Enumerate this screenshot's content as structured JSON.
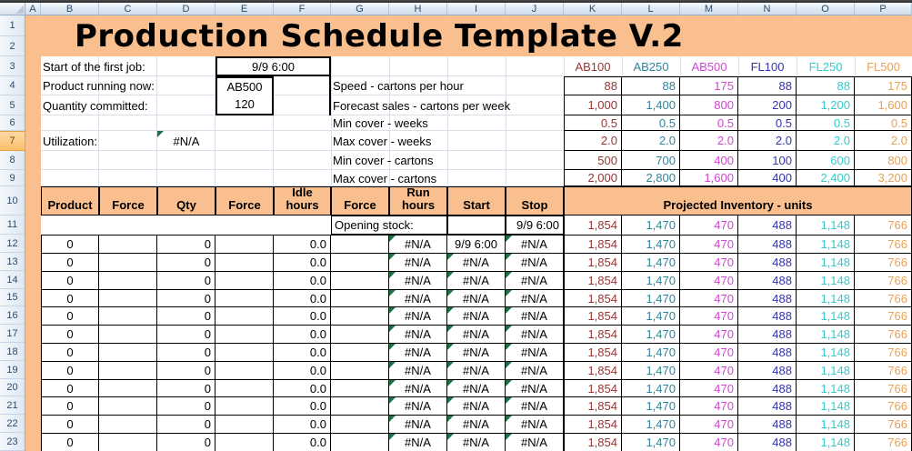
{
  "sheet": {
    "column_letters": [
      "A",
      "B",
      "C",
      "D",
      "E",
      "F",
      "G",
      "H",
      "I",
      "J",
      "K",
      "L",
      "M",
      "N",
      "O",
      "P"
    ],
    "row_numbers": [
      "1",
      "2",
      "3",
      "4",
      "5",
      "6",
      "7",
      "8",
      "9",
      "10",
      "11",
      "12",
      "13",
      "14",
      "15",
      "16",
      "17",
      "18",
      "19",
      "20",
      "21",
      "22",
      "23"
    ],
    "highlighted_row": "7"
  },
  "colors": {
    "band_orange": "#FABF8F",
    "grid_line": "#D9E0EA",
    "error_indicator_green": "#1E7145"
  },
  "title": "Production Schedule Template V.2",
  "info": {
    "start_label": "Start of the first job:",
    "start_value": "9/9 6:00",
    "running_label": "Product running now:",
    "running_value": "AB500",
    "qty_label": "Quantity committed:",
    "qty_value": "120",
    "util_label": "Utilization:",
    "util_value": "#N/A"
  },
  "params": {
    "speed_label": "Speed - cartons per hour",
    "forecast_label": "Forecast sales - cartons per week",
    "min_weeks_label": "Min cover - weeks",
    "max_weeks_label": "Max cover - weeks",
    "min_cartons_label": "Min cover - cartons",
    "max_cartons_label": "Max cover - cartons"
  },
  "products": [
    {
      "code": "AB100",
      "color": "#963634",
      "speed": "88",
      "forecast": "1,000",
      "min_weeks": "0.5",
      "max_weeks": "2.0",
      "min_cartons": "500",
      "max_cartons": "2,000",
      "opening": "1,854"
    },
    {
      "code": "AB250",
      "color": "#31859B",
      "speed": "88",
      "forecast": "1,400",
      "min_weeks": "0.5",
      "max_weeks": "2.0",
      "min_cartons": "700",
      "max_cartons": "2,800",
      "opening": "1,470"
    },
    {
      "code": "AB500",
      "color": "#D346D3",
      "speed": "175",
      "forecast": "800",
      "min_weeks": "0.5",
      "max_weeks": "2.0",
      "min_cartons": "400",
      "max_cartons": "1,600",
      "opening": "470"
    },
    {
      "code": "FL100",
      "color": "#3333B2",
      "speed": "88",
      "forecast": "200",
      "min_weeks": "0.5",
      "max_weeks": "2.0",
      "min_cartons": "100",
      "max_cartons": "400",
      "opening": "488"
    },
    {
      "code": "FL250",
      "color": "#33CCCC",
      "speed": "88",
      "forecast": "1,200",
      "min_weeks": "0.5",
      "max_weeks": "2.0",
      "min_cartons": "600",
      "max_cartons": "2,400",
      "opening": "1,148"
    },
    {
      "code": "FL500",
      "color": "#E8A157",
      "speed": "175",
      "forecast": "1,600",
      "min_weeks": "0.5",
      "max_weeks": "2.0",
      "min_cartons": "800",
      "max_cartons": "3,200",
      "opening": "766"
    }
  ],
  "schedule": {
    "headers": {
      "product": "Product",
      "force": "Force",
      "qty": "Qty",
      "idle": "Idle hours",
      "run": "Run hours",
      "start": "Start",
      "stop": "Stop",
      "inventory": "Projected Inventory - units"
    },
    "opening_label": "Opening stock:",
    "opening_stop_value": "9/9 6:00",
    "rows": [
      {
        "product": "0",
        "qty": "0",
        "idle": "0.0",
        "run": "#N/A",
        "start": "9/9 6:00",
        "stop": "#N/A",
        "tri_run": true,
        "tri_start": false,
        "tri_stop": true
      },
      {
        "product": "0",
        "qty": "0",
        "idle": "0.0",
        "run": "#N/A",
        "start": "#N/A",
        "stop": "#N/A",
        "tri_run": true,
        "tri_start": true,
        "tri_stop": true
      },
      {
        "product": "0",
        "qty": "0",
        "idle": "0.0",
        "run": "#N/A",
        "start": "#N/A",
        "stop": "#N/A",
        "tri_run": true,
        "tri_start": true,
        "tri_stop": true
      },
      {
        "product": "0",
        "qty": "0",
        "idle": "0.0",
        "run": "#N/A",
        "start": "#N/A",
        "stop": "#N/A",
        "tri_run": true,
        "tri_start": true,
        "tri_stop": true
      },
      {
        "product": "0",
        "qty": "0",
        "idle": "0.0",
        "run": "#N/A",
        "start": "#N/A",
        "stop": "#N/A",
        "tri_run": true,
        "tri_start": true,
        "tri_stop": true
      },
      {
        "product": "0",
        "qty": "0",
        "idle": "0.0",
        "run": "#N/A",
        "start": "#N/A",
        "stop": "#N/A",
        "tri_run": true,
        "tri_start": true,
        "tri_stop": true
      },
      {
        "product": "0",
        "qty": "0",
        "idle": "0.0",
        "run": "#N/A",
        "start": "#N/A",
        "stop": "#N/A",
        "tri_run": true,
        "tri_start": true,
        "tri_stop": true
      },
      {
        "product": "0",
        "qty": "0",
        "idle": "0.0",
        "run": "#N/A",
        "start": "#N/A",
        "stop": "#N/A",
        "tri_run": true,
        "tri_start": true,
        "tri_stop": true
      },
      {
        "product": "0",
        "qty": "0",
        "idle": "0.0",
        "run": "#N/A",
        "start": "#N/A",
        "stop": "#N/A",
        "tri_run": true,
        "tri_start": true,
        "tri_stop": true
      },
      {
        "product": "0",
        "qty": "0",
        "idle": "0.0",
        "run": "#N/A",
        "start": "#N/A",
        "stop": "#N/A",
        "tri_run": true,
        "tri_start": true,
        "tri_stop": true
      },
      {
        "product": "0",
        "qty": "0",
        "idle": "0.0",
        "run": "#N/A",
        "start": "#N/A",
        "stop": "#N/A",
        "tri_run": true,
        "tri_start": true,
        "tri_stop": true
      },
      {
        "product": "0",
        "qty": "0",
        "idle": "0.0",
        "run": "#N/A",
        "start": "#N/A",
        "stop": "#N/A",
        "tri_run": true,
        "tri_start": true,
        "tri_stop": true
      }
    ]
  }
}
